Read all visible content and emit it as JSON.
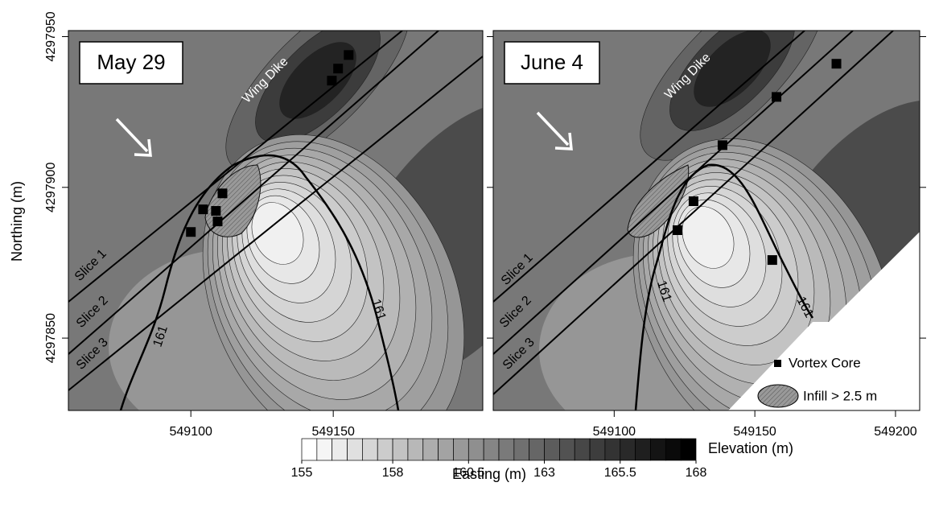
{
  "chart_data": {
    "type": "contour",
    "xlabel": "Easting (m)",
    "ylabel": "Northing (m)",
    "ylim": [
      4297826,
      4297952
    ],
    "yticks": [
      4297850,
      4297900,
      4297950
    ],
    "panels": [
      {
        "title": "May 29",
        "xlim": [
          549057,
          549202.5
        ],
        "xticks": [
          549100,
          549150
        ],
        "annotations": [
          "Wing Dike",
          "Slice 1",
          "Slice 2",
          "Slice 3",
          "161",
          "161"
        ],
        "vortex_core": {
          "x": [
            549100,
            549104.3,
            549108.8,
            549109.4,
            549111.1,
            549149.5,
            549151.7,
            549155.4
          ],
          "y": [
            4297885.2,
            4297892.7,
            4297892.2,
            4297888.7,
            4297898,
            4297935.4,
            4297939.4,
            4297943.9
          ]
        }
      },
      {
        "title": "June 4",
        "xlim": [
          549057,
          549208.6
        ],
        "xticks": [
          549100,
          549150,
          549200
        ],
        "annotations": [
          "Wing Dike",
          "Slice 1",
          "Slice 2",
          "Slice 3",
          "161",
          "161"
        ],
        "vortex_core": {
          "x": [
            549179,
            549157.7,
            549138.5,
            549128.2,
            549122.5,
            549156.2
          ],
          "y": [
            4297941,
            4297930,
            4297914,
            4297895.4,
            4297885.8,
            4297875.9
          ]
        }
      }
    ],
    "legend": {
      "vortex_core": "Vortex Core",
      "infill": "Infill > 2.5 m"
    },
    "colorbar": {
      "label": "Elevation (m)",
      "levels": [
        155,
        155.5,
        156,
        156.5,
        157,
        157.5,
        158,
        158.5,
        159,
        159.5,
        160,
        160.5,
        161,
        161.5,
        162,
        162.5,
        163,
        163.5,
        164,
        164.5,
        165,
        165.5,
        166,
        166.5,
        167,
        167.5,
        168
      ],
      "ticks": [
        155,
        158,
        160.5,
        163,
        165.5,
        168
      ]
    }
  }
}
